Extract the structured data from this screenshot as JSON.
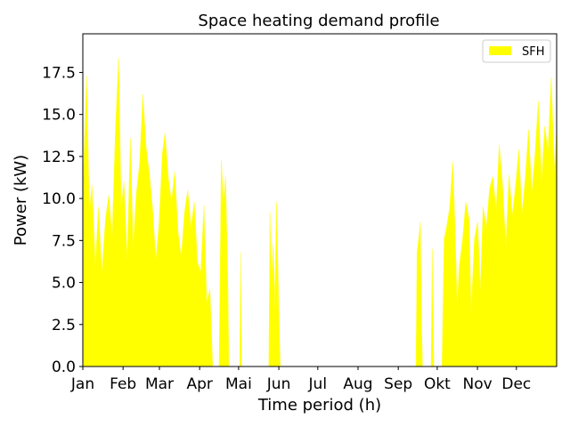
{
  "chart_data": {
    "type": "area",
    "title": "Space heating demand profile",
    "xlabel": "Time period (h)",
    "ylabel": "Power (kW)",
    "xlim": [
      0,
      8760
    ],
    "ylim": [
      0,
      19.8
    ],
    "x_ticks": [
      {
        "x": 0,
        "label": "Jan"
      },
      {
        "x": 744,
        "label": "Feb"
      },
      {
        "x": 1416,
        "label": "Mar"
      },
      {
        "x": 2160,
        "label": "Apr"
      },
      {
        "x": 2880,
        "label": "Mai"
      },
      {
        "x": 3624,
        "label": "Jun"
      },
      {
        "x": 4344,
        "label": "Jul"
      },
      {
        "x": 5088,
        "label": "Aug"
      },
      {
        "x": 5832,
        "label": "Sep"
      },
      {
        "x": 6552,
        "label": "Okt"
      },
      {
        "x": 7296,
        "label": "Nov"
      },
      {
        "x": 8016,
        "label": "Dec"
      }
    ],
    "y_ticks": [
      {
        "y": 0,
        "label": "0.0"
      },
      {
        "y": 2.5,
        "label": "2.5"
      },
      {
        "y": 5,
        "label": "5.0"
      },
      {
        "y": 7.5,
        "label": "7.5"
      },
      {
        "y": 10,
        "label": "10.0"
      },
      {
        "y": 12.5,
        "label": "12.5"
      },
      {
        "y": 15,
        "label": "15.0"
      },
      {
        "y": 17.5,
        "label": "17.5"
      }
    ],
    "legend": {
      "placement": "top-right",
      "entries": [
        "SFH"
      ]
    },
    "grid": false,
    "series": [
      {
        "name": "SFH",
        "color": "#ffff00",
        "points": [
          [
            0,
            10.5
          ],
          [
            70,
            17.3
          ],
          [
            120,
            9.2
          ],
          [
            170,
            10.8
          ],
          [
            230,
            6.0
          ],
          [
            290,
            9.5
          ],
          [
            350,
            5.5
          ],
          [
            420,
            8.8
          ],
          [
            480,
            10.2
          ],
          [
            540,
            7.6
          ],
          [
            600,
            13.7
          ],
          [
            660,
            18.4
          ],
          [
            710,
            9.5
          ],
          [
            760,
            11.0
          ],
          [
            820,
            6.4
          ],
          [
            880,
            13.6
          ],
          [
            930,
            7.1
          ],
          [
            990,
            10.3
          ],
          [
            1050,
            12.1
          ],
          [
            1110,
            16.2
          ],
          [
            1170,
            13.0
          ],
          [
            1230,
            11.5
          ],
          [
            1290,
            9.4
          ],
          [
            1350,
            6.3
          ],
          [
            1410,
            8.5
          ],
          [
            1470,
            12.7
          ],
          [
            1520,
            13.9
          ],
          [
            1580,
            11.2
          ],
          [
            1640,
            9.8
          ],
          [
            1700,
            11.6
          ],
          [
            1760,
            8.0
          ],
          [
            1820,
            6.5
          ],
          [
            1880,
            9.2
          ],
          [
            1940,
            10.5
          ],
          [
            2000,
            8.3
          ],
          [
            2060,
            9.8
          ],
          [
            2120,
            6.2
          ],
          [
            2180,
            5.6
          ],
          [
            2240,
            9.6
          ],
          [
            2290,
            3.8
          ],
          [
            2350,
            4.6
          ],
          [
            2400,
            0
          ],
          [
            2520,
            0
          ],
          [
            2560,
            12.3
          ],
          [
            2600,
            9.7
          ],
          [
            2640,
            11.3
          ],
          [
            2680,
            5.0
          ],
          [
            2700,
            0
          ],
          [
            2900,
            0
          ],
          [
            2920,
            6.8
          ],
          [
            2935,
            0
          ],
          [
            3440,
            0
          ],
          [
            3460,
            9.2
          ],
          [
            3490,
            5.2
          ],
          [
            3520,
            7.3
          ],
          [
            3550,
            3.6
          ],
          [
            3580,
            9.8
          ],
          [
            3610,
            5.6
          ],
          [
            3630,
            2.4
          ],
          [
            3650,
            0
          ],
          [
            6160,
            0
          ],
          [
            6180,
            6.8
          ],
          [
            6210,
            7.6
          ],
          [
            6240,
            8.6
          ],
          [
            6260,
            2.6
          ],
          [
            6280,
            0
          ],
          [
            6440,
            0
          ],
          [
            6460,
            7.0
          ],
          [
            6490,
            0
          ],
          [
            6640,
            0
          ],
          [
            6680,
            7.6
          ],
          [
            6720,
            8.2
          ],
          [
            6780,
            9.4
          ],
          [
            6840,
            12.2
          ],
          [
            6880,
            8.4
          ],
          [
            6920,
            3.6
          ],
          [
            6960,
            6.0
          ],
          [
            7020,
            7.5
          ],
          [
            7080,
            9.8
          ],
          [
            7140,
            8.8
          ],
          [
            7180,
            3.2
          ],
          [
            7240,
            7.6
          ],
          [
            7300,
            8.6
          ],
          [
            7350,
            4.6
          ],
          [
            7400,
            9.5
          ],
          [
            7460,
            8.3
          ],
          [
            7520,
            10.6
          ],
          [
            7580,
            11.3
          ],
          [
            7640,
            9.3
          ],
          [
            7700,
            13.2
          ],
          [
            7760,
            10.8
          ],
          [
            7820,
            7.1
          ],
          [
            7880,
            11.4
          ],
          [
            7940,
            9.0
          ],
          [
            8000,
            10.7
          ],
          [
            8060,
            12.9
          ],
          [
            8120,
            9.1
          ],
          [
            8180,
            11.2
          ],
          [
            8240,
            14.1
          ],
          [
            8300,
            10.3
          ],
          [
            8360,
            12.6
          ],
          [
            8420,
            15.8
          ],
          [
            8480,
            11.0
          ],
          [
            8540,
            14.3
          ],
          [
            8600,
            12.8
          ],
          [
            8660,
            17.2
          ],
          [
            8720,
            11.6
          ],
          [
            8760,
            14.2
          ]
        ]
      }
    ]
  }
}
